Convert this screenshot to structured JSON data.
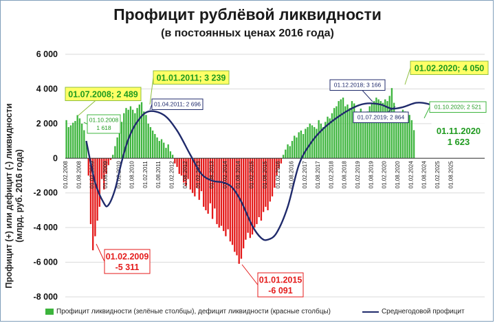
{
  "chart_data": {
    "type": "bar",
    "title": "Профицит рублёвой ликвидности",
    "subtitle": "(в постоянных ценах 2016 года)",
    "ylabel": [
      "Профицит (+) или дефицит (-) ликвидности",
      "(млрд. руб. 2016 года)"
    ],
    "ylim": [
      -8000,
      6000
    ],
    "yticks": [
      "6 000",
      "4 000",
      "2 000",
      "0",
      "-2 000",
      "-4 000",
      "-6 000",
      "-8 000"
    ],
    "ytick_values": [
      6000,
      4000,
      2000,
      0,
      -2000,
      -4000,
      -6000,
      -8000
    ],
    "grid": true,
    "legend_position": "bottom",
    "x_start": "01.02.2008",
    "xticks": [
      "01.02.2008",
      "01.08.2008",
      "01.02.2009",
      "01.08.2009",
      "01.02.2010",
      "01.08.2010",
      "01.02.2011",
      "01.08.2011",
      "01.02.2012",
      "01.08.2012",
      "01.02.2013",
      "01.08.2013",
      "01.02.2014",
      "01.08.2014",
      "01.02.2015",
      "01.08.2015",
      "01.02.2016",
      "01.08.2016",
      "01.02.2017",
      "01.08.2017",
      "01.02.2018",
      "01.08.2018",
      "01.02.2019",
      "01.08.2019",
      "01.02.2020",
      "01.08.2020",
      "01.02.2024",
      "01.08.2024",
      "01.02.2025",
      "01.08.2025"
    ],
    "series": [
      {
        "name": "Профицит ликвидности (зелёные столбцы), дефицит ликвидности (красные столбцы)",
        "type": "bar",
        "positive_color": "#3cb43c",
        "negative_color": "#e41a1a",
        "values": [
          2200,
          1800,
          1900,
          2050,
          2150,
          2489,
          2300,
          2000,
          1618,
          1000,
          -1000,
          -3800,
          -5311,
          -4500,
          -3600,
          -2800,
          -1200,
          -1800,
          -900,
          -400,
          -100,
          200,
          700,
          1200,
          1700,
          2100,
          2600,
          2900,
          2800,
          3000,
          2800,
          2600,
          2900,
          3100,
          3239,
          2700,
          2500,
          2000,
          1800,
          1600,
          1400,
          1200,
          1000,
          1100,
          900,
          600,
          800,
          400,
          200,
          -300,
          -500,
          -900,
          -1000,
          -1400,
          -1600,
          -1200,
          -1800,
          -2000,
          -2200,
          -1700,
          -2400,
          -1900,
          -2800,
          -3000,
          -3200,
          -2600,
          -3500,
          -2900,
          -3800,
          -4000,
          -3900,
          -4200,
          -4500,
          -4100,
          -4800,
          -5000,
          -5400,
          -5600,
          -6091,
          -5800,
          -5200,
          -4700,
          -4300,
          -4600,
          -4400,
          -4000,
          -3800,
          -3400,
          -3600,
          -3100,
          -2800,
          -3000,
          -2500,
          -2200,
          -1700,
          -1000,
          -600,
          -300,
          200,
          500,
          800,
          700,
          1000,
          1300,
          1200,
          1500,
          1600,
          1400,
          1700,
          1800,
          2000,
          1900,
          1800,
          1700,
          2200,
          2000,
          1800,
          2100,
          2400,
          2300,
          2600,
          2900,
          3000,
          3300,
          3400,
          3500,
          3000,
          3100,
          2900,
          3300,
          3166,
          2700,
          2500,
          2864,
          2600,
          2300,
          2700,
          3000,
          3200,
          3300,
          3500,
          3400,
          3300,
          3200,
          3400,
          3300,
          3600,
          4050,
          3200,
          2500,
          2400,
          2521,
          2800,
          2700,
          2600,
          2500,
          2200,
          1623
        ]
      },
      {
        "name": "Среднегодовой профицит",
        "type": "line",
        "color": "#1f2a6b",
        "points": [
          [
            9,
            1000
          ],
          [
            13,
            -1400
          ],
          [
            17,
            -2600
          ],
          [
            19,
            -2700
          ],
          [
            22,
            -1800
          ],
          [
            25,
            -200
          ],
          [
            28,
            1100
          ],
          [
            32,
            2100
          ],
          [
            37,
            2696
          ],
          [
            44,
            2500
          ],
          [
            50,
            1600
          ],
          [
            56,
            200
          ],
          [
            61,
            -900
          ],
          [
            66,
            -1300
          ],
          [
            71,
            -1400
          ],
          [
            75,
            -1700
          ],
          [
            79,
            -2500
          ],
          [
            84,
            -3900
          ],
          [
            88,
            -4600
          ],
          [
            91,
            -4700
          ],
          [
            95,
            -4300
          ],
          [
            100,
            -2800
          ],
          [
            105,
            -400
          ],
          [
            110,
            800
          ],
          [
            116,
            1700
          ],
          [
            124,
            2500
          ],
          [
            131,
            3000
          ],
          [
            136,
            3166
          ],
          [
            142,
            3100
          ],
          [
            147,
            2864
          ],
          [
            152,
            2950
          ],
          [
            158,
            3200
          ],
          [
            163,
            3150
          ],
          [
            168,
            2900
          ]
        ]
      }
    ],
    "annotations": [
      {
        "text": "01.07.2008; 2 489",
        "style": "yellow-big"
      },
      {
        "text": "01.10.2008\n1 618",
        "style": "green-small"
      },
      {
        "text": "01.01.2011; 3 239",
        "style": "yellow-big"
      },
      {
        "text": "01.04.2011; 2 696",
        "style": "navy-small"
      },
      {
        "text": "01.02.2009\n-5 311",
        "style": "red-big"
      },
      {
        "text": "01.01.2015\n-6 091",
        "style": "red-big"
      },
      {
        "text": "01.12.2018; 3 166",
        "style": "navy-small"
      },
      {
        "text": "01.07.2019; 2 864",
        "style": "navy-small"
      },
      {
        "text": "01.02.2020; 4 050",
        "style": "yellow-big"
      },
      {
        "text": "01.10.2020; 2 521",
        "style": "green-small"
      },
      {
        "text": "01.11.2020\n1 623",
        "style": "green-big"
      }
    ]
  }
}
